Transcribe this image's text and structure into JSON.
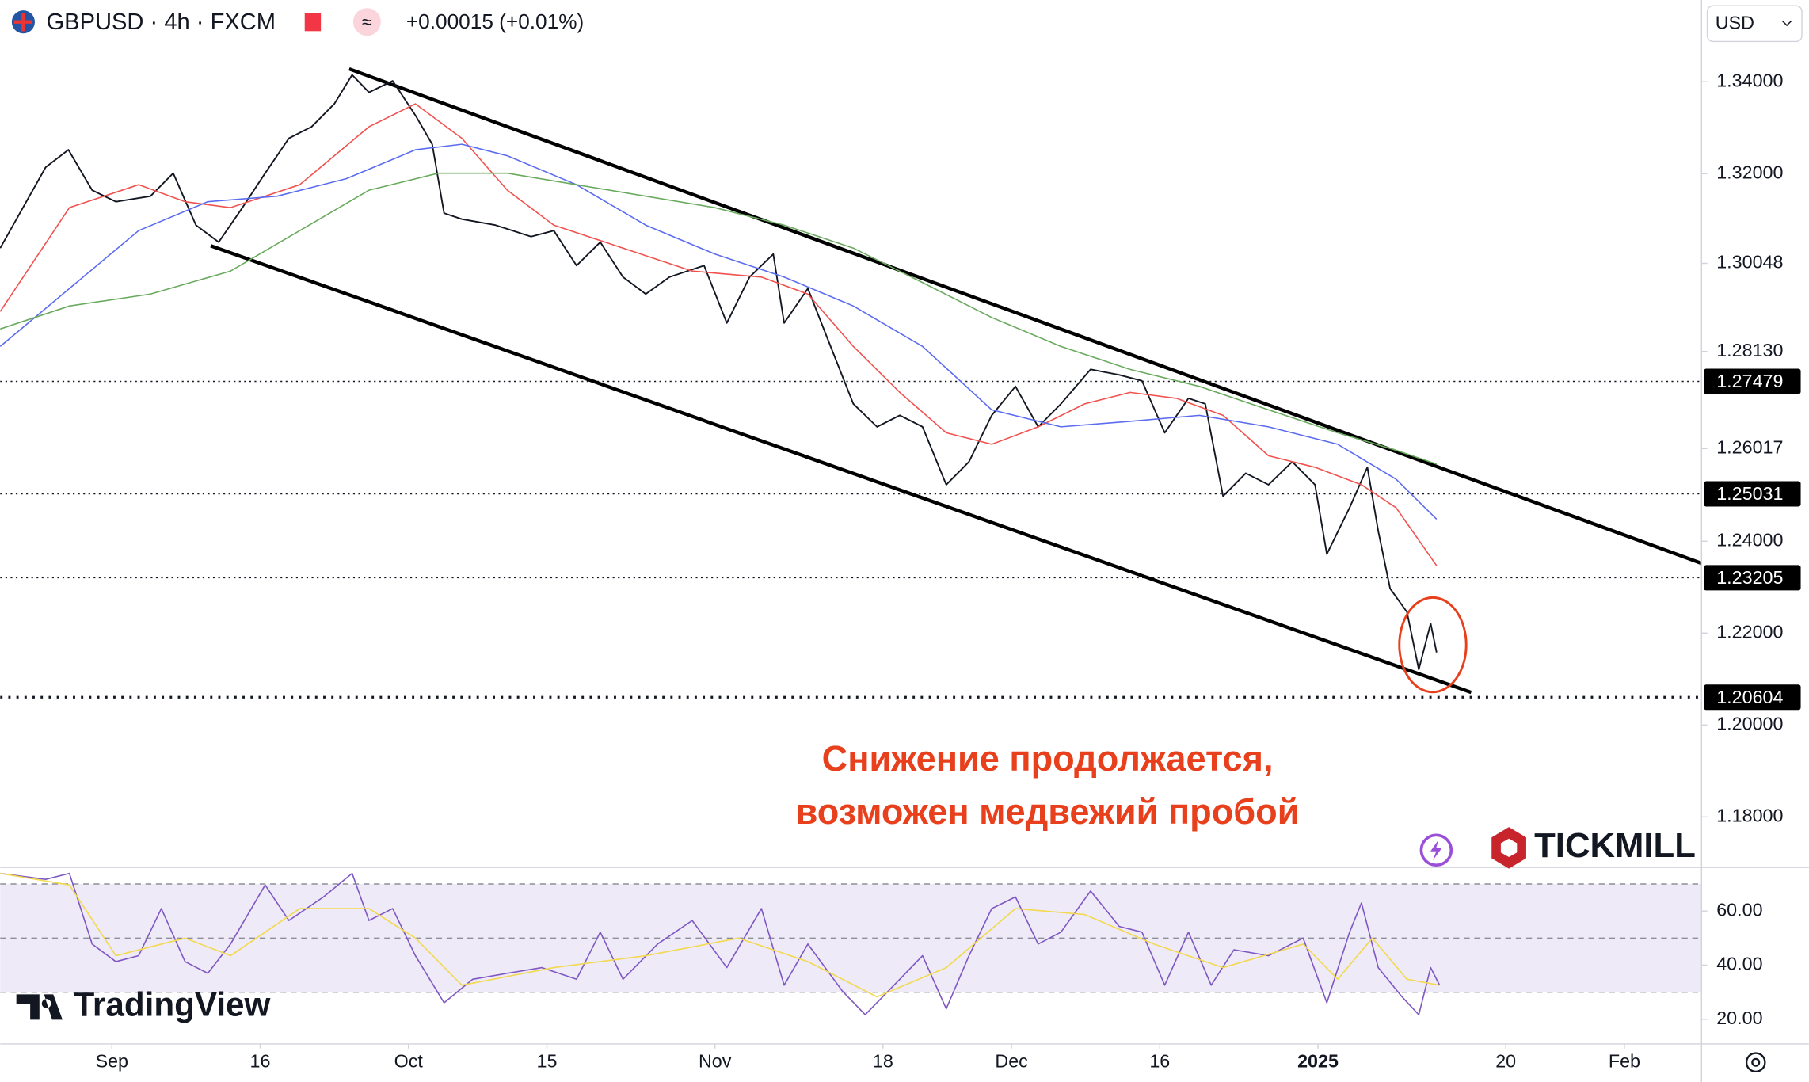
{
  "header": {
    "symbol": "GBPUSD · 4h · FXCM",
    "change": "+0.00015 (+0.01%)",
    "currency": "USD"
  },
  "logos": {
    "broker": "TICKMILL",
    "platform": "TradingView"
  },
  "chart_data": [
    {
      "type": "line",
      "annotations": [
        "Снижение продолжается,",
        "возможен медвежий пробой"
      ],
      "xlim": [
        -11.3,
        160.8
      ],
      "xticks": [
        {
          "value": 0,
          "label": "Sep"
        },
        {
          "value": 15,
          "label": "16"
        },
        {
          "value": 30,
          "label": "Oct"
        },
        {
          "value": 44,
          "label": "15"
        },
        {
          "value": 61,
          "label": "Nov"
        },
        {
          "value": 78,
          "label": "18"
        },
        {
          "value": 91,
          "label": "Dec"
        },
        {
          "value": 106,
          "label": "16"
        },
        {
          "value": 122,
          "label": "2025"
        },
        {
          "value": 141,
          "label": "20"
        },
        {
          "value": 153,
          "label": "Feb"
        }
      ],
      "ylim": [
        1.169,
        1.3578
      ],
      "yticks": [
        {
          "value": 1.34,
          "label": "1.34000"
        },
        {
          "value": 1.32,
          "label": "1.32000"
        },
        1.30048,
        {
          "value": 1.2813,
          "label": "1.28130"
        },
        1.26017,
        {
          "value": 1.24,
          "label": "1.24000"
        },
        {
          "value": 1.22,
          "label": "1.22000"
        },
        {
          "value": 1.2,
          "label": "1.20000"
        },
        {
          "value": 1.18,
          "label": "1.18000"
        }
      ],
      "price_levels": [
        1.27479,
        1.25031,
        1.23205,
        1.20604
      ],
      "trendlines": [
        {
          "x": [
            24,
            160.8
          ],
          "values": [
            1.3428,
            1.2352
          ]
        },
        {
          "x": [
            10,
            137.5
          ],
          "values": [
            1.3043,
            1.2071
          ]
        }
      ],
      "series": [
        {
          "color": "#131722",
          "x": [
            -11.3,
            -9,
            -6.7,
            -4.4,
            -2,
            0.4,
            3.9,
            6.2,
            8.5,
            10.8,
            13.2,
            15.5,
            17.9,
            20.2,
            22.5,
            24.3,
            26,
            28.4,
            30.7,
            32.4,
            33.6,
            35.4,
            38.8,
            42.4,
            44.7,
            47,
            49.4,
            51.7,
            54,
            56.4,
            59.9,
            62.2,
            64.5,
            66.9,
            68,
            70.4,
            72.7,
            75,
            77.4,
            79.7,
            82,
            84.4,
            86.7,
            89,
            91.4,
            93.7,
            96,
            99,
            101.9,
            104.2,
            106.5,
            108.9,
            110.6,
            112.4,
            114.7,
            117,
            119.4,
            121.7,
            122.9,
            125.2,
            127,
            128.1,
            129.3,
            131,
            132.2,
            133.4,
            134
          ],
          "values": [
            1.3038,
            1.3126,
            1.3214,
            1.3252,
            1.3164,
            1.3139,
            1.3151,
            1.3201,
            1.3088,
            1.3051,
            1.3126,
            1.3201,
            1.3277,
            1.3302,
            1.3352,
            1.3415,
            1.3377,
            1.3402,
            1.3327,
            1.3264,
            1.3114,
            1.3101,
            1.3088,
            1.3063,
            1.3076,
            1.3,
            1.3051,
            1.2975,
            1.2938,
            1.2975,
            1.3,
            1.2875,
            1.2975,
            1.3025,
            1.2875,
            1.295,
            1.2824,
            1.2699,
            1.2649,
            1.2674,
            1.2649,
            1.2523,
            1.2573,
            1.2674,
            1.2737,
            1.2649,
            1.2699,
            1.2774,
            1.2762,
            1.2749,
            1.2636,
            1.2711,
            1.2699,
            1.2498,
            1.2548,
            1.2523,
            1.2573,
            1.2523,
            1.2372,
            1.2473,
            1.2561,
            1.2422,
            1.2297,
            1.2246,
            1.2121,
            1.2221,
            1.2158
          ]
        },
        {
          "color": "#f0524f",
          "x": [
            -11.3,
            -4.3,
            2.7,
            7.4,
            12,
            19,
            26,
            30.7,
            35.4,
            40,
            44.7,
            51.7,
            58.7,
            65.7,
            70.4,
            75,
            79.7,
            84.4,
            89,
            93.7,
            98.4,
            103,
            107.7,
            112.4,
            117,
            121.7,
            126.4,
            129.9,
            134
          ],
          "values": [
            1.29,
            1.3126,
            1.3176,
            1.3139,
            1.3126,
            1.3176,
            1.3302,
            1.3352,
            1.3277,
            1.3164,
            1.3088,
            1.3038,
            1.2988,
            1.2975,
            1.2938,
            1.2824,
            1.2724,
            1.2636,
            1.2611,
            1.2649,
            1.2699,
            1.2724,
            1.2711,
            1.2674,
            1.2586,
            1.2561,
            1.2523,
            1.2473,
            1.2347
          ]
        },
        {
          "color": "#5b6cf0",
          "x": [
            -11.3,
            -4.3,
            2.7,
            9.7,
            16.7,
            23.7,
            30.7,
            35.4,
            40,
            47,
            54,
            61,
            68,
            75,
            82,
            89,
            96,
            103,
            110,
            117,
            124,
            129.9,
            134
          ],
          "values": [
            1.2824,
            1.295,
            1.3076,
            1.3139,
            1.3151,
            1.3189,
            1.3252,
            1.3264,
            1.3239,
            1.3176,
            1.3088,
            1.3025,
            1.2975,
            1.2912,
            1.2824,
            1.2686,
            1.2649,
            1.2661,
            1.2674,
            1.2649,
            1.2611,
            1.2535,
            1.2448
          ]
        },
        {
          "color": "#6aaa5e",
          "x": [
            -11.3,
            -4.3,
            3.9,
            12,
            19,
            26,
            33,
            40,
            47,
            54,
            61,
            68,
            75,
            82,
            89,
            96,
            103,
            110,
            117,
            124,
            129.9,
            134
          ],
          "values": [
            1.2862,
            1.2912,
            1.2938,
            1.2988,
            1.3076,
            1.3164,
            1.3201,
            1.3201,
            1.3176,
            1.3151,
            1.3126,
            1.3088,
            1.3038,
            1.2963,
            1.2887,
            1.2824,
            1.2774,
            1.2737,
            1.2686,
            1.2636,
            1.2598,
            1.2568
          ]
        }
      ]
    },
    {
      "type": "line",
      "xlim": [
        -11.3,
        160.8
      ],
      "ylim": [
        10.9,
        76.1
      ],
      "yticks": [
        {
          "value": 60,
          "label": "60.00"
        },
        {
          "value": 40,
          "label": "40.00"
        },
        {
          "value": 20,
          "label": "20.00"
        }
      ],
      "levels": [
        70,
        50,
        30
      ],
      "series": [
        {
          "color": "#7e57c2",
          "x": [
            -11.3,
            -6.7,
            -4.3,
            -2,
            0.4,
            2.7,
            5,
            7.4,
            9.7,
            12,
            15.5,
            17.9,
            21.4,
            24.3,
            26,
            28.4,
            30.7,
            33.6,
            36.5,
            40,
            43.5,
            47,
            49.4,
            51.7,
            55.2,
            58.7,
            62.2,
            65.7,
            68,
            70.4,
            73.9,
            76.2,
            79.7,
            82,
            84.4,
            86.7,
            89,
            91.4,
            93.7,
            96,
            99,
            101.9,
            104.2,
            106.5,
            108.9,
            111.2,
            113.5,
            117,
            120.5,
            122.9,
            125.2,
            126.4,
            128.1,
            130.5,
            132.2,
            133.4,
            134.3
          ],
          "values": [
            73.9,
            71.7,
            73.9,
            47.8,
            41.3,
            43.5,
            60.9,
            41.3,
            37,
            47.8,
            69.6,
            56.5,
            65.2,
            73.9,
            56.5,
            60.9,
            43.5,
            26.1,
            34.8,
            37,
            39.1,
            34.8,
            52.2,
            34.8,
            47.8,
            56.5,
            39.1,
            60.9,
            32.6,
            47.8,
            30.4,
            21.7,
            34.8,
            43.5,
            23.9,
            43.5,
            60.9,
            65.2,
            47.8,
            52.2,
            67.4,
            54.3,
            52.2,
            32.6,
            52.2,
            32.6,
            45.7,
            43.5,
            50,
            26.1,
            52.2,
            63,
            39.1,
            28.3,
            21.7,
            39.1,
            32.6
          ]
        },
        {
          "color": "#f2d94e",
          "x": [
            -11.3,
            -4.3,
            0.4,
            7.4,
            12,
            19,
            26,
            30.7,
            35.4,
            44.7,
            54,
            63.4,
            70.4,
            77.4,
            84.4,
            91.4,
            98.4,
            105.4,
            112.4,
            120.5,
            124,
            127.5,
            131,
            134.3
          ],
          "values": [
            73.9,
            69.6,
            43.5,
            50,
            43.5,
            60.9,
            60.9,
            50,
            32.6,
            39.1,
            43.5,
            50,
            41.3,
            28.3,
            39.1,
            60.9,
            58.7,
            47.8,
            39.1,
            47.8,
            34.8,
            50,
            34.8,
            32.6
          ]
        }
      ]
    }
  ]
}
